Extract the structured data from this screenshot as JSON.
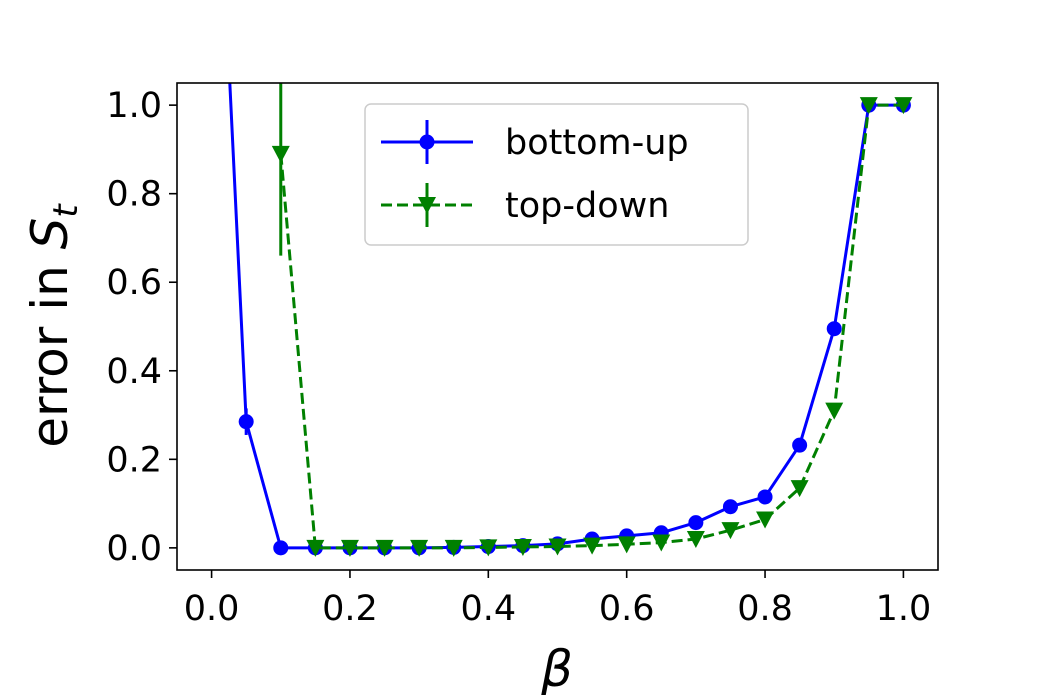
{
  "chart_data": {
    "type": "line",
    "xlabel": "β",
    "ylabel_main": "error in ",
    "ylabel_var": "S",
    "ylabel_sub": "t",
    "xlim": [
      -0.05,
      1.05
    ],
    "ylim": [
      -0.05,
      1.05
    ],
    "xticks": [
      0.0,
      0.2,
      0.4,
      0.6,
      0.8,
      1.0
    ],
    "xtick_labels": [
      "0.0",
      "0.2",
      "0.4",
      "0.6",
      "0.8",
      "1.0"
    ],
    "yticks": [
      0.0,
      0.2,
      0.4,
      0.6,
      0.8,
      1.0
    ],
    "ytick_labels": [
      "0.0",
      "0.2",
      "0.4",
      "0.6",
      "0.8",
      "1.0"
    ],
    "grid": false,
    "legend_position": "top-center",
    "series": [
      {
        "name": "bottom-up",
        "color": "#0000ff",
        "linestyle": "solid",
        "marker": "circle",
        "x": [
          0.0,
          0.05,
          0.1,
          0.15,
          0.2,
          0.25,
          0.3,
          0.35,
          0.4,
          0.45,
          0.5,
          0.55,
          0.6,
          0.65,
          0.7,
          0.75,
          0.8,
          0.85,
          0.9,
          0.95,
          1.0
        ],
        "y": [
          1.9,
          0.285,
          0.0,
          0.0,
          0.0,
          0.0,
          0.0,
          0.001,
          0.003,
          0.005,
          0.009,
          0.02,
          0.027,
          0.034,
          0.057,
          0.093,
          0.115,
          0.232,
          0.495,
          1.0,
          1.0
        ],
        "yerr": [
          0.0,
          0.03,
          0.0,
          0.0,
          0.0,
          0.0,
          0.0,
          0.0,
          0.0,
          0.0,
          0.0,
          0.0,
          0.0,
          0.0,
          0.0,
          0.0,
          0.0,
          0.0,
          0.0,
          0.0,
          0.0
        ]
      },
      {
        "name": "top-down",
        "color": "#008000",
        "linestyle": "dashed",
        "marker": "triangle-down",
        "x": [
          0.1,
          0.15,
          0.2,
          0.25,
          0.3,
          0.35,
          0.4,
          0.45,
          0.5,
          0.55,
          0.6,
          0.65,
          0.7,
          0.75,
          0.8,
          0.85,
          0.9,
          0.95,
          1.0
        ],
        "y": [
          0.89,
          0.0,
          0.0,
          0.0,
          0.0,
          0.0,
          0.001,
          0.002,
          0.003,
          0.005,
          0.008,
          0.012,
          0.02,
          0.04,
          0.064,
          0.135,
          0.31,
          1.0,
          1.0
        ],
        "yerr": [
          0.23,
          0.0,
          0.0,
          0.0,
          0.0,
          0.0,
          0.0,
          0.0,
          0.0,
          0.0,
          0.0,
          0.0,
          0.0,
          0.0,
          0.0,
          0.0,
          0.0,
          0.0,
          0.0
        ]
      }
    ]
  }
}
